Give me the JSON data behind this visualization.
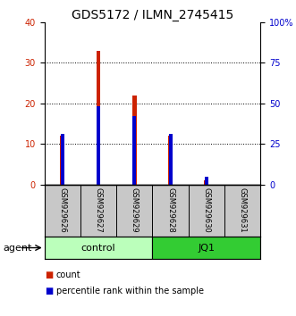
{
  "title": "GDS5172 / ILMN_2745415",
  "samples": [
    "GSM929626",
    "GSM929627",
    "GSM929629",
    "GSM929628",
    "GSM929630",
    "GSM929631"
  ],
  "count_values": [
    12,
    33,
    22,
    12,
    1,
    0
  ],
  "percentile_values": [
    31,
    48,
    42,
    31,
    5,
    0
  ],
  "groups": [
    {
      "label": "control",
      "indices": [
        0,
        1,
        2
      ],
      "color_light": "#BBFFBB",
      "color_dark": "#BBFFBB"
    },
    {
      "label": "JQ1",
      "indices": [
        3,
        4,
        5
      ],
      "color_light": "#44DD44",
      "color_dark": "#44DD44"
    }
  ],
  "left_ylim": [
    0,
    40
  ],
  "right_ylim": [
    0,
    100
  ],
  "left_yticks": [
    0,
    10,
    20,
    30,
    40
  ],
  "right_yticks": [
    0,
    25,
    50,
    75,
    100
  ],
  "right_yticklabels": [
    "0",
    "25",
    "50",
    "75",
    "100%"
  ],
  "bar_color_red": "#CC2200",
  "bar_color_blue": "#0000CC",
  "bar_width": 0.12,
  "legend_items": [
    {
      "label": "count",
      "color": "#CC2200"
    },
    {
      "label": "percentile rank within the sample",
      "color": "#0000CC"
    }
  ],
  "agent_label": "agent",
  "title_fontsize": 10,
  "tick_fontsize": 7,
  "sample_fontsize": 6,
  "group_fontsize": 8,
  "legend_fontsize": 7,
  "background_sample_labels": "#C8C8C8",
  "control_green": "#BBFFBB",
  "jq1_green": "#33CC33"
}
